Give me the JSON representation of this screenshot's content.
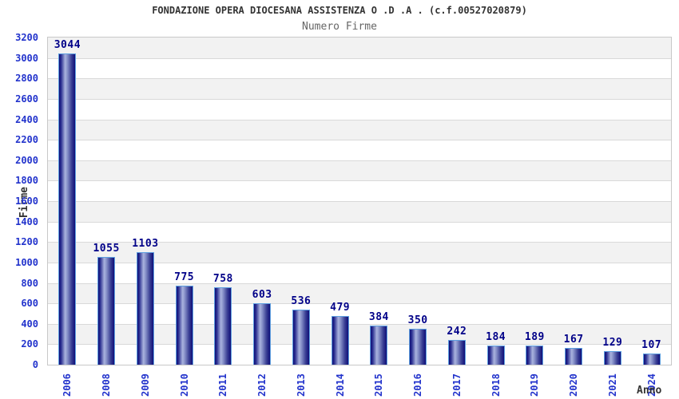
{
  "chart_data": {
    "type": "bar",
    "title": "FONDAZIONE OPERA DIOCESANA ASSISTENZA O .D .A . (c.f.00527020879)",
    "subtitle": "Numero Firme",
    "categories": [
      "2006",
      "2008",
      "2009",
      "2010",
      "2011",
      "2012",
      "2013",
      "2014",
      "2015",
      "2016",
      "2017",
      "2018",
      "2019",
      "2020",
      "2021",
      "2024"
    ],
    "values": [
      3044,
      1055,
      1103,
      775,
      758,
      603,
      536,
      479,
      384,
      350,
      242,
      184,
      189,
      167,
      129,
      107
    ],
    "xlabel": "Anno",
    "ylabel": "Firme",
    "ylim": [
      0,
      3200
    ],
    "ytick_step": 200,
    "grid": true,
    "legend": false,
    "bar_value_labels": true,
    "x_tick_rotation_deg": 90,
    "band_fill_alternating": true
  },
  "colors": {
    "title_color": "#333333",
    "subtitle_color": "#666666",
    "axis_title_color": "#333333",
    "axis_tick_label": "#2233cc",
    "value_label": "#000088",
    "band_gray": "#f2f2f2",
    "band_white": "#ffffff",
    "gridline": "#d9d9d9",
    "plot_border": "#c8c8c8",
    "bar_outline": "#5e9fe0",
    "bar_gradient": [
      "#0f0f78",
      "#2a2e90",
      "#aab3de",
      "#8690c8",
      "#3a3f94",
      "#0f0f78"
    ],
    "bar_gradient_stops": [
      0,
      12,
      38,
      52,
      78,
      100
    ]
  }
}
